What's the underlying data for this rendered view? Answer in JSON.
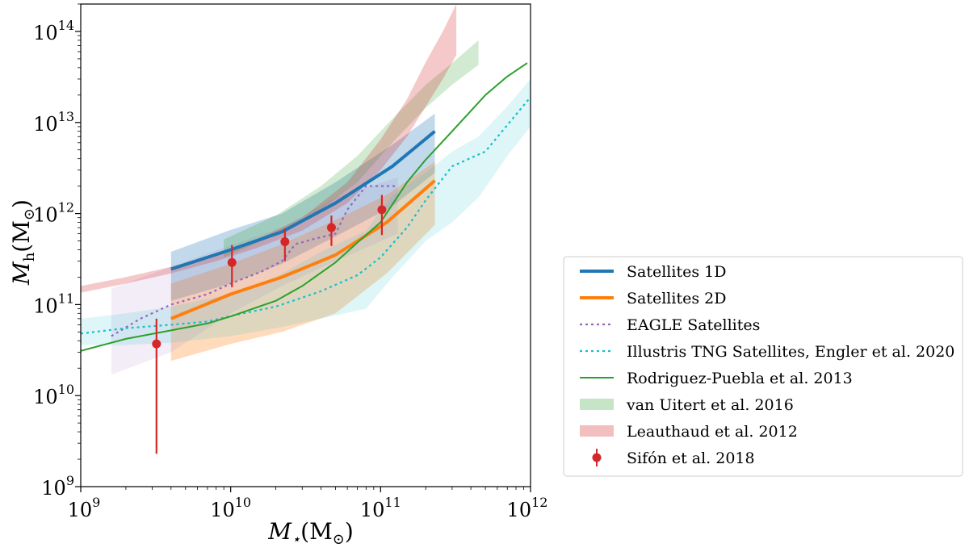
{
  "chart_data": {
    "type": "line",
    "xlabel": "M⋆(M⊙)",
    "ylabel": "Mh(M⊙)",
    "xscale": "log",
    "yscale": "log",
    "xlim": [
      1000000000.0,
      1000000000000.0
    ],
    "ylim": [
      1000000000.0,
      200000000000000.0
    ],
    "x_ticks": [
      {
        "base": "10",
        "exp": "9",
        "value": 1000000000.0
      },
      {
        "base": "10",
        "exp": "10",
        "value": 10000000000.0
      },
      {
        "base": "10",
        "exp": "11",
        "value": 100000000000.0
      },
      {
        "base": "10",
        "exp": "12",
        "value": 1000000000000.0
      }
    ],
    "y_ticks": [
      {
        "base": "10",
        "exp": "9",
        "value": 1000000000.0
      },
      {
        "base": "10",
        "exp": "10",
        "value": 10000000000.0
      },
      {
        "base": "10",
        "exp": "11",
        "value": 100000000000.0
      },
      {
        "base": "10",
        "exp": "12",
        "value": 1000000000000.0
      },
      {
        "base": "10",
        "exp": "13",
        "value": 10000000000000.0
      },
      {
        "base": "10",
        "exp": "14",
        "value": 100000000000000.0
      }
    ],
    "legend_position": "outside-right",
    "series": [
      {
        "name": "Satellites 1D",
        "kind": "line",
        "color": "#1f77b4",
        "width": 4,
        "dash": "",
        "x": [
          4000000000.0,
          10000000000.0,
          22000000000.0,
          50000000000.0,
          120000000000.0,
          230000000000.0
        ],
        "y": [
          245000000000.0,
          400000000000.0,
          630000000000.0,
          1300000000000.0,
          3300000000000.0,
          8000000000000.0
        ],
        "band": {
          "x": [
            4000000000.0,
            10000000000.0,
            22000000000.0,
            50000000000.0,
            120000000000.0,
            230000000000.0
          ],
          "lower": [
            110000000000.0,
            170000000000.0,
            280000000000.0,
            560000000000.0,
            1200000000000.0,
            2800000000000.0
          ],
          "upper": [
            380000000000.0,
            660000000000.0,
            1000000000000.0,
            2200000000000.0,
            5700000000000.0,
            12500000000000.0
          ]
        }
      },
      {
        "name": "Satellites 2D",
        "kind": "line",
        "color": "#ff7f0e",
        "width": 4,
        "dash": "",
        "x": [
          4000000000.0,
          10000000000.0,
          22000000000.0,
          50000000000.0,
          110000000000.0,
          230000000000.0
        ],
        "y": [
          70000000000.0,
          130000000000.0,
          200000000000.0,
          350000000000.0,
          800000000000.0,
          2300000000000.0
        ],
        "band": {
          "x": [
            4000000000.0,
            10000000000.0,
            22000000000.0,
            50000000000.0,
            110000000000.0,
            230000000000.0
          ],
          "lower": [
            24000000000.0,
            37000000000.0,
            50000000000.0,
            80000000000.0,
            220000000000.0,
            750000000000.0
          ],
          "upper": [
            170000000000.0,
            280000000000.0,
            460000000000.0,
            850000000000.0,
            1600000000000.0,
            3700000000000.0
          ]
        }
      },
      {
        "name": "EAGLE Satellites",
        "kind": "line",
        "color": "#9467bd",
        "width": 2.2,
        "dash": "3,4",
        "x": [
          1600000000.0,
          2500000000.0,
          4000000000.0,
          7000000000.0,
          10000000000.0,
          16000000000.0,
          22000000000.0,
          27000000000.0,
          35000000000.0,
          50000000000.0,
          60000000000.0,
          80000000000.0,
          130000000000.0
        ],
        "y": [
          45000000000.0,
          70000000000.0,
          100000000000.0,
          130000000000.0,
          170000000000.0,
          230000000000.0,
          300000000000.0,
          460000000000.0,
          520000000000.0,
          600000000000.0,
          1100000000000.0,
          2000000000000.0,
          2000000000000.0
        ],
        "band": {
          "x": [
            1600000000.0,
            4000000000.0,
            10000000000.0,
            22000000000.0,
            50000000000.0,
            130000000000.0
          ],
          "lower": [
            17000000000.0,
            30000000000.0,
            80000000000.0,
            160000000000.0,
            300000000000.0,
            600000000000.0
          ],
          "upper": [
            150000000000.0,
            260000000000.0,
            450000000000.0,
            700000000000.0,
            1500000000000.0,
            2500000000000.0
          ]
        }
      },
      {
        "name": "Illustris TNG Satellites,  Engler et al. 2020",
        "kind": "line",
        "color": "#17becf",
        "width": 2.2,
        "dash": "3,4",
        "x": [
          1000000000.0,
          2000000000.0,
          4000000000.0,
          7000000000.0,
          10000000000.0,
          20000000000.0,
          40000000000.0,
          70000000000.0,
          100000000000.0,
          150000000000.0,
          200000000000.0,
          300000000000.0,
          500000000000.0,
          1000000000000.0
        ],
        "y": [
          48000000000.0,
          55000000000.0,
          60000000000.0,
          65000000000.0,
          75000000000.0,
          95000000000.0,
          140000000000.0,
          210000000000.0,
          330000000000.0,
          700000000000.0,
          1400000000000.0,
          3300000000000.0,
          4800000000000.0,
          19000000000000.0
        ],
        "band": {
          "x": [
            1000000000.0,
            2000000000.0,
            4000000000.0,
            10000000000.0,
            20000000000.0,
            40000000000.0,
            80000000000.0,
            120000000000.0,
            200000000000.0,
            300000000000.0,
            450000000000.0,
            700000000000.0,
            1000000000000.0
          ],
          "lower": [
            36000000000.0,
            36000000000.0,
            38000000000.0,
            45000000000.0,
            55000000000.0,
            70000000000.0,
            90000000000.0,
            200000000000.0,
            500000000000.0,
            800000000000.0,
            1500000000000.0,
            4300000000000.0,
            9000000000000.0
          ],
          "upper": [
            70000000000.0,
            80000000000.0,
            95000000000.0,
            130000000000.0,
            200000000000.0,
            380000000000.0,
            650000000000.0,
            1600000000000.0,
            2800000000000.0,
            4800000000000.0,
            7000000000000.0,
            15000000000000.0,
            30000000000000.0
          ]
        }
      },
      {
        "name": "Rodriguez-Puebla et al. 2013",
        "kind": "line",
        "color": "#2ca02c",
        "width": 2,
        "dash": "",
        "x": [
          1000000000.0,
          2000000000.0,
          4000000000.0,
          7000000000.0,
          10000000000.0,
          20000000000.0,
          30000000000.0,
          50000000000.0,
          70000000000.0,
          100000000000.0,
          150000000000.0,
          200000000000.0,
          300000000000.0,
          500000000000.0,
          700000000000.0,
          950000000000.0
        ],
        "y": [
          31000000000.0,
          42000000000.0,
          52000000000.0,
          62000000000.0,
          74000000000.0,
          110000000000.0,
          160000000000.0,
          290000000000.0,
          480000000000.0,
          800000000000.0,
          2200000000000.0,
          3900000000000.0,
          8000000000000.0,
          20000000000000.0,
          32000000000000.0,
          45000000000000.0
        ]
      },
      {
        "name": "van Uitert et al. 2016",
        "kind": "band",
        "color": "#2ca02c",
        "opacity": 0.22,
        "band": {
          "x": [
            9000000000.0,
            20000000000.0,
            40000000000.0,
            70000000000.0,
            120000000000.0,
            200000000000.0,
            300000000000.0,
            450000000000.0
          ],
          "lower": [
            330000000000.0,
            580000000000.0,
            1100000000000.0,
            2200000000000.0,
            6000000000000.0,
            14500000000000.0,
            26000000000000.0,
            43000000000000.0
          ],
          "upper": [
            520000000000.0,
            950000000000.0,
            2000000000000.0,
            4300000000000.0,
            11000000000000.0,
            26000000000000.0,
            45000000000000.0,
            80000000000000.0
          ]
        }
      },
      {
        "name": "Leauthaud et al. 2012",
        "kind": "band",
        "color": "#d62728",
        "opacity": 0.25,
        "band": {
          "x": [
            1000000000.0,
            2000000000.0,
            4000000000.0,
            8000000000.0,
            15000000000.0,
            30000000000.0,
            60000000000.0,
            100000000000.0,
            150000000000.0,
            200000000000.0,
            260000000000.0,
            320000000000.0
          ],
          "lower": [
            135000000000.0,
            170000000000.0,
            220000000000.0,
            300000000000.0,
            420000000000.0,
            650000000000.0,
            1300000000000.0,
            3000000000000.0,
            7000000000000.0,
            15000000000000.0,
            30000000000000.0,
            55000000000000.0
          ],
          "upper": [
            160000000000.0,
            200000000000.0,
            260000000000.0,
            360000000000.0,
            520000000000.0,
            900000000000.0,
            2200000000000.0,
            6500000000000.0,
            18000000000000.0,
            46000000000000.0,
            100000000000000.0,
            200000000000000.0
          ]
        }
      },
      {
        "name": "Sifón et al. 2018",
        "kind": "points",
        "color": "#d62728",
        "x": [
          3200000000.0,
          10200000000.0,
          23000000000.0,
          47000000000.0,
          102000000000.0
        ],
        "y": [
          37000000000.0,
          290000000000.0,
          490000000000.0,
          700000000000.0,
          1100000000000.0
        ],
        "yerr_lower": [
          2300000000.0,
          155000000000.0,
          300000000000.0,
          440000000000.0,
          580000000000.0
        ],
        "yerr_upper": [
          70000000000.0,
          450000000000.0,
          680000000000.0,
          950000000000.0,
          1600000000000.0
        ]
      }
    ]
  }
}
